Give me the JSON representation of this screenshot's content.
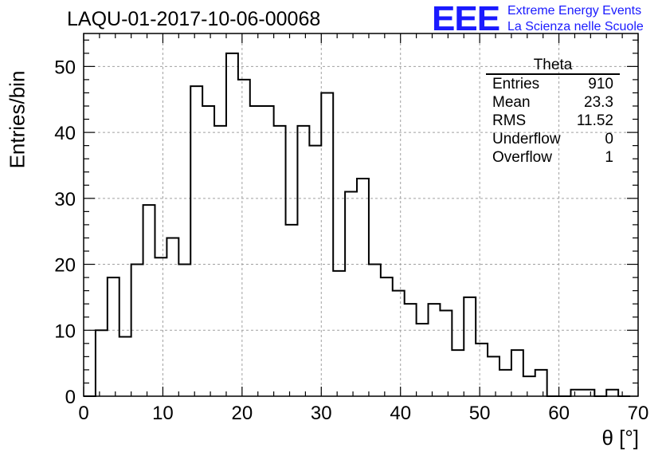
{
  "title": "LAQU-01-2017-10-06-00068",
  "logo": {
    "text": "EEE",
    "line1": "Extreme Energy Events",
    "line2": "La Scienza nelle Scuole",
    "color": "#1a1aff"
  },
  "stats": {
    "title": "Theta",
    "rows": [
      {
        "label": "Entries",
        "value": "910"
      },
      {
        "label": "Mean",
        "value": "23.3"
      },
      {
        "label": "RMS",
        "value": "11.52"
      },
      {
        "label": "Underflow",
        "value": "0"
      },
      {
        "label": "Overflow",
        "value": "1"
      }
    ]
  },
  "chart_data": {
    "type": "bar",
    "histogram_style": "step",
    "title": "LAQU-01-2017-10-06-00068",
    "xlabel": "θ [°]",
    "ylabel": "Entries/bin",
    "xlim": [
      0,
      70
    ],
    "ylim": [
      0,
      55
    ],
    "bin_start": 0,
    "bin_width": 1.5,
    "values": [
      0,
      10,
      18,
      9,
      20,
      29,
      21,
      24,
      20,
      47,
      44,
      41,
      52,
      48,
      44,
      44,
      41,
      26,
      41,
      38,
      46,
      19,
      31,
      33,
      20,
      18,
      16,
      14,
      11,
      14,
      13,
      7,
      15,
      8,
      6,
      4,
      7,
      3,
      4,
      0,
      0,
      1,
      1,
      0,
      1,
      0,
      0
    ],
    "x_ticks": [
      0,
      10,
      20,
      30,
      40,
      50,
      60,
      70
    ],
    "y_ticks": [
      0,
      10,
      20,
      30,
      40,
      50
    ],
    "grid": true,
    "line_color": "#000000"
  }
}
